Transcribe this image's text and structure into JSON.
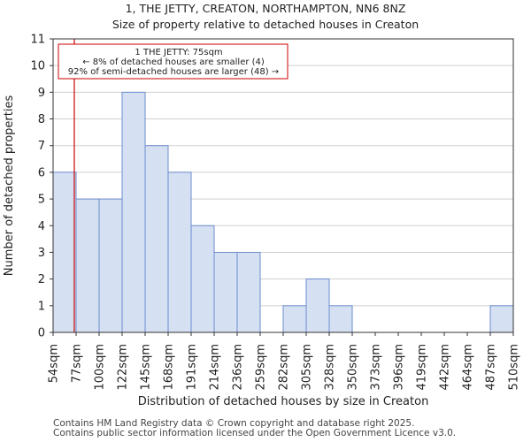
{
  "chart_data": {
    "type": "bar",
    "title": "1, THE JETTY, CREATON, NORTHAMPTON, NN6 8NZ",
    "subtitle": "Size of property relative to detached houses in Creaton",
    "xlabel": "Distribution of detached houses by size in Creaton",
    "ylabel": "Number of detached properties",
    "bin_edges": [
      54,
      77,
      100,
      122,
      145,
      168,
      191,
      214,
      236,
      259,
      282,
      305,
      328,
      350,
      373,
      396,
      419,
      442,
      464,
      487,
      510
    ],
    "x_tick_labels": [
      "54sqm",
      "77sqm",
      "100sqm",
      "122sqm",
      "145sqm",
      "168sqm",
      "191sqm",
      "214sqm",
      "236sqm",
      "259sqm",
      "282sqm",
      "305sqm",
      "328sqm",
      "350sqm",
      "373sqm",
      "396sqm",
      "419sqm",
      "442sqm",
      "464sqm",
      "487sqm",
      "510sqm"
    ],
    "values": [
      6,
      5,
      5,
      9,
      7,
      6,
      4,
      3,
      3,
      0,
      1,
      2,
      1,
      0,
      0,
      0,
      0,
      0,
      0,
      1
    ],
    "ylim": [
      0,
      11
    ],
    "y_ticks": [
      0,
      1,
      2,
      3,
      4,
      5,
      6,
      7,
      8,
      9,
      10,
      11
    ],
    "grid": true,
    "bar_color": "#d6e0f3",
    "bar_edge_color": "#6b8ccc",
    "marker": {
      "value": 75,
      "color": "#cc0000"
    },
    "annotation": {
      "lines": [
        "1 THE JETTY: 75sqm",
        "← 8% of detached houses are smaller (4)",
        "92% of semi-detached houses are larger (48) →"
      ],
      "border_color": "#cc0000"
    }
  },
  "footer": {
    "line1": "Contains HM Land Registry data © Crown copyright and database right 2025.",
    "line2": "Contains public sector information licensed under the Open Government Licence v3.0."
  }
}
